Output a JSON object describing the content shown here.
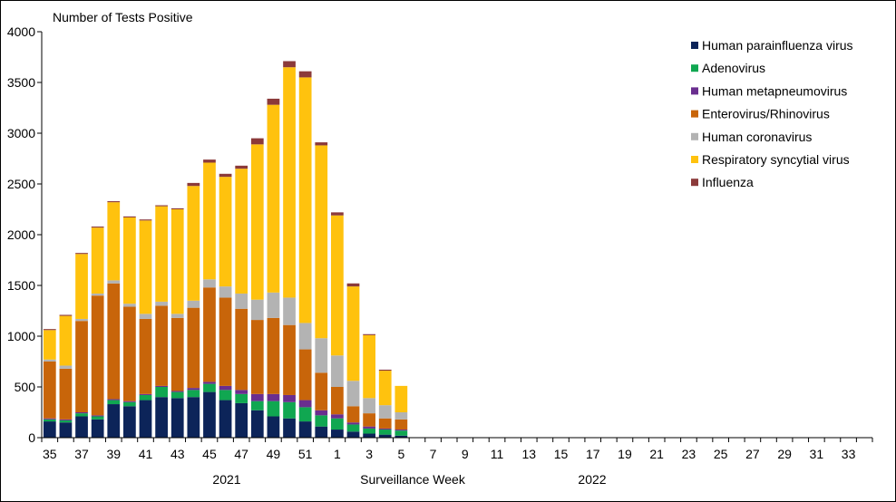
{
  "chart_data": {
    "type": "bar",
    "stacked": true,
    "ylabel": "Number of Tests Positive",
    "xlabel": "Surveillance Week",
    "year_labels": [
      "2021",
      "2022"
    ],
    "ylim": [
      0,
      4000
    ],
    "yticks": [
      0,
      500,
      1000,
      1500,
      2000,
      2500,
      3000,
      3500,
      4000
    ],
    "legend_position": "top-right",
    "weeks": [
      35,
      36,
      37,
      38,
      39,
      40,
      41,
      42,
      43,
      44,
      45,
      46,
      47,
      48,
      49,
      50,
      51,
      52,
      1,
      2,
      3,
      4,
      5,
      6,
      7,
      8,
      9,
      10,
      11,
      12,
      13,
      14,
      15,
      16,
      17,
      18,
      19,
      20,
      21,
      22,
      23,
      24,
      25,
      26,
      27,
      28,
      29,
      30,
      31,
      32,
      33,
      34
    ],
    "week_tick_labels": [
      "35",
      "37",
      "39",
      "41",
      "43",
      "45",
      "47",
      "49",
      "51",
      "1",
      "3",
      "5",
      "7",
      "9",
      "11",
      "13",
      "15",
      "17",
      "19",
      "21",
      "23",
      "25",
      "27",
      "29",
      "31",
      "33"
    ],
    "series": [
      {
        "name": "Human parainfluenza virus",
        "color": "#0c2459",
        "values": [
          160,
          150,
          210,
          180,
          330,
          310,
          370,
          400,
          390,
          400,
          450,
          370,
          340,
          270,
          210,
          190,
          160,
          110,
          80,
          60,
          40,
          30,
          20
        ]
      },
      {
        "name": "Adenovirus",
        "color": "#10a751",
        "values": [
          20,
          20,
          30,
          30,
          40,
          40,
          50,
          100,
          60,
          70,
          80,
          100,
          90,
          90,
          150,
          160,
          140,
          110,
          110,
          70,
          50,
          50,
          50
        ]
      },
      {
        "name": "Human metapneumovirus",
        "color": "#6a2e8f",
        "values": [
          10,
          10,
          10,
          10,
          10,
          10,
          10,
          10,
          10,
          20,
          20,
          40,
          40,
          70,
          70,
          70,
          70,
          50,
          40,
          20,
          20,
          10,
          10
        ]
      },
      {
        "name": "Enterovirus/Rhinovirus",
        "color": "#c8650a",
        "values": [
          560,
          500,
          900,
          1180,
          1140,
          930,
          740,
          790,
          720,
          790,
          930,
          870,
          800,
          730,
          750,
          690,
          500,
          370,
          270,
          160,
          130,
          100,
          100
        ]
      },
      {
        "name": "Human coronavirus",
        "color": "#b3b3b3",
        "values": [
          20,
          30,
          20,
          20,
          30,
          30,
          50,
          40,
          40,
          70,
          80,
          110,
          150,
          200,
          250,
          270,
          260,
          340,
          310,
          250,
          150,
          130,
          70
        ]
      },
      {
        "name": "Respiratory syncytial virus",
        "color": "#ffc20e",
        "values": [
          290,
          490,
          640,
          650,
          770,
          850,
          920,
          940,
          1030,
          1130,
          1150,
          1080,
          1230,
          1530,
          1850,
          2270,
          2420,
          1900,
          1380,
          930,
          620,
          340,
          260
        ]
      },
      {
        "name": "Influenza",
        "color": "#8b3a3a",
        "values": [
          10,
          10,
          10,
          10,
          10,
          10,
          10,
          10,
          10,
          30,
          30,
          30,
          30,
          60,
          60,
          60,
          60,
          30,
          30,
          30,
          10,
          10,
          0
        ]
      }
    ]
  }
}
